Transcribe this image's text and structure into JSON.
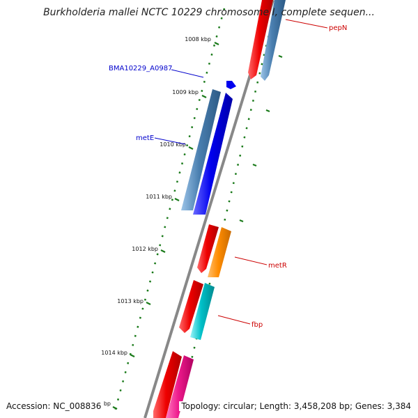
{
  "title": "Burkholderia mallei NCTC 10229 chromosome I, complete sequen...",
  "accession": "Accession: NC_008836",
  "topology": "Topology: circular; Length: 3,458,208 bp; Genes: 3,384",
  "partial_bp_label": "bp",
  "kbp_ticks": [
    "1008 kbp",
    "1009 kbp",
    "1010 kbp",
    "1011 kbp",
    "1012 kbp",
    "1013 kbp",
    "1014 kbp"
  ],
  "gene_labels": {
    "pepN": "pepN",
    "bma": "BMA10229_A0987",
    "metE": "metE",
    "metR": "metR",
    "fbp": "fbp"
  },
  "colors": {
    "backbone": "#888888",
    "tick": "#1a7a1a",
    "label_red": "#cc0000",
    "label_blue": "#0000cc",
    "gene_red": "#ee0000",
    "gene_steelblue": "#4a7fb0",
    "gene_blue": "#0000ee",
    "gene_orange": "#ff8c00",
    "gene_cyan": "#00c0c8",
    "gene_pink": "#ee1a8c"
  }
}
